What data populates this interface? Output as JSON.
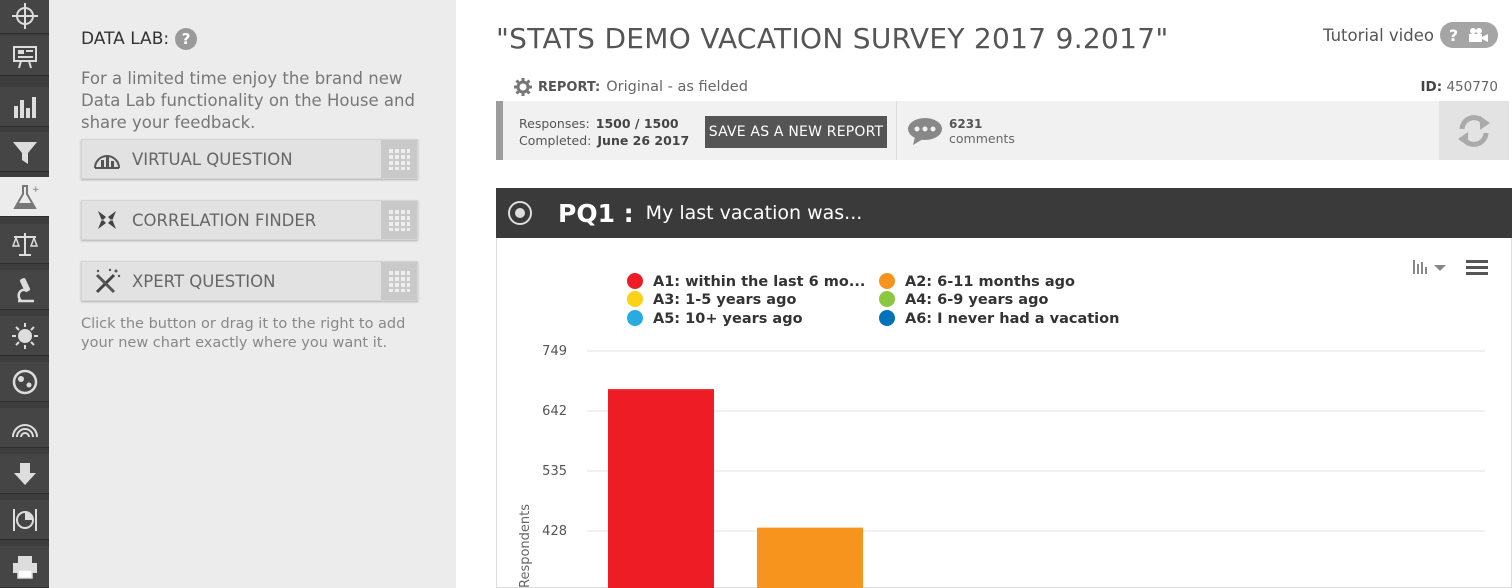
{
  "data_lab": {
    "title": "DATA LAB:",
    "help_glyph": "?",
    "description": "For a limited time enjoy the brand new Data Lab functionality on the House and share your feedback.",
    "buttons": [
      {
        "label": "VIRTUAL QUESTION",
        "icon": "virtual-question-icon"
      },
      {
        "label": "CORRELATION FINDER",
        "icon": "correlation-finder-icon"
      },
      {
        "label": "XPERT QUESTION",
        "icon": "xpert-question-icon"
      }
    ],
    "hint": "Click the button or drag it to the right to add your new chart exactly where you want it."
  },
  "rail": {
    "items": [
      "target-icon",
      "presentation-icon",
      "bar-chart-icon",
      "filter-icon",
      "flask-icon",
      "scales-icon",
      "microscope-icon",
      "sun-icon",
      "globe-icon",
      "rainbow-icon",
      "download-icon",
      "pie-icon",
      "printer-icon"
    ],
    "active": "flask-icon"
  },
  "report": {
    "title": "\"STATS DEMO VACATION SURVEY 2017 9.2017\"",
    "tutorial_label": "Tutorial video",
    "tutorial_glyph": "?",
    "report_label": "REPORT:",
    "report_value": "Original - as fielded",
    "id_label": "ID:",
    "id_value": "450770",
    "responses_label": "Responses:",
    "responses_value": "1500 / 1500",
    "completed_label": "Completed:",
    "completed_value": "June 26 2017",
    "save_label": "SAVE AS A NEW REPORT",
    "comments_count": "6231",
    "comments_label": "comments"
  },
  "question": {
    "code": "PQ1 :",
    "text": "My last vacation was..."
  },
  "chart_data": {
    "type": "bar",
    "ylabel": "Respondents",
    "ylim": [
      321,
      749
    ],
    "yticks": [
      749,
      642,
      535,
      428
    ],
    "legend_position": "top-left",
    "series": [
      {
        "name": "A1: within the last 6 mo...",
        "color": "#ee1c25",
        "value": 681
      },
      {
        "name": "A2: 6-11 months ago",
        "color": "#f7941d"
      },
      {
        "name": "A3: 1-5 years ago",
        "color": "#fcd116"
      },
      {
        "name": "A4: 6-9 years ago",
        "color": "#8dc63f"
      },
      {
        "name": "A5: 10+ years ago",
        "color": "#29abe2"
      },
      {
        "name": "A6: I never had a vacation",
        "color": "#0072bc"
      }
    ],
    "visible_bars": [
      {
        "series": "A1: within the last 6 mo...",
        "value": 681,
        "color": "#ee1c25"
      },
      {
        "series": "A2: 6-11 months ago",
        "value": 434,
        "color": "#f7941d"
      }
    ]
  }
}
